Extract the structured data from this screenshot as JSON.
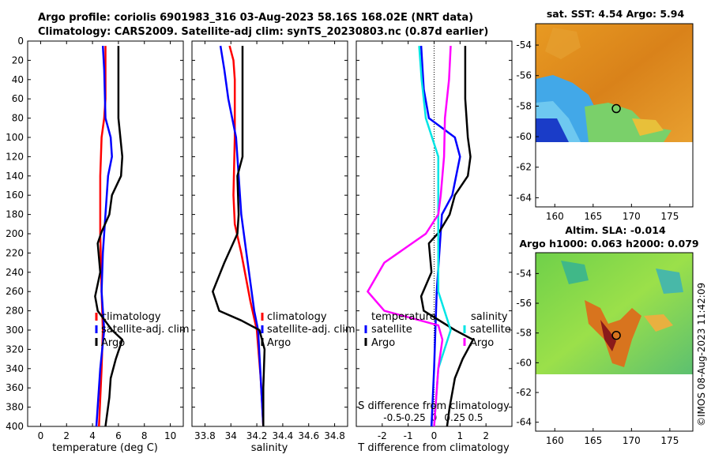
{
  "title": {
    "line1": "Argo profile: coriolis 6901983_316 03-Aug-2023 58.16S 168.02E (NRT data)",
    "line2": "Climatology: CARS2009. Satellite-adj clim: synTS_20230803.nc (0.87d earlier)"
  },
  "watermark": "©IMOS 08-Aug-2023 11:42:09",
  "colors": {
    "red": "#ff0000",
    "blue": "#0000ff",
    "black": "#000000",
    "cyan": "#00e5e5",
    "magenta": "#ff00ff"
  },
  "chart_data": [
    {
      "type": "line",
      "name": "temperature",
      "xlabel": "temperature (deg C)",
      "ylabel": "",
      "xlim": [
        -1,
        11
      ],
      "ylim": [
        400,
        0
      ],
      "xticks": [
        "0",
        "2",
        "4",
        "6",
        "8",
        "10"
      ],
      "xtick_values": [
        0,
        2,
        4,
        6,
        8,
        10
      ],
      "yticks": [
        "0",
        "20",
        "40",
        "60",
        "80",
        "100",
        "120",
        "140",
        "160",
        "180",
        "200",
        "220",
        "240",
        "260",
        "280",
        "300",
        "320",
        "340",
        "360",
        "380",
        "400"
      ],
      "legend": [
        "climatology",
        "satellite-adj. clim",
        "Argo"
      ],
      "series": [
        {
          "name": "climatology",
          "color": "red",
          "points": [
            [
              5.0,
              5
            ],
            [
              5.0,
              60
            ],
            [
              4.9,
              80
            ],
            [
              4.7,
              100
            ],
            [
              4.6,
              140
            ],
            [
              4.6,
              200
            ],
            [
              4.7,
              260
            ],
            [
              4.8,
              300
            ],
            [
              4.7,
              340
            ],
            [
              4.5,
              400
            ]
          ]
        },
        {
          "name": "satellite-adj. clim",
          "color": "blue",
          "points": [
            [
              4.8,
              5
            ],
            [
              4.9,
              30
            ],
            [
              5.0,
              80
            ],
            [
              5.4,
              100
            ],
            [
              5.5,
              120
            ],
            [
              5.2,
              140
            ],
            [
              5.0,
              180
            ],
            [
              4.8,
              220
            ],
            [
              4.7,
              260
            ],
            [
              4.9,
              300
            ],
            [
              4.6,
              340
            ],
            [
              4.3,
              400
            ]
          ]
        },
        {
          "name": "Argo",
          "color": "black",
          "points": [
            [
              6.0,
              5
            ],
            [
              6.0,
              80
            ],
            [
              6.3,
              120
            ],
            [
              6.2,
              140
            ],
            [
              5.5,
              160
            ],
            [
              5.3,
              180
            ],
            [
              4.7,
              198
            ],
            [
              4.4,
              210
            ],
            [
              4.6,
              240
            ],
            [
              4.2,
              265
            ],
            [
              4.4,
              280
            ],
            [
              5.5,
              300
            ],
            [
              6.3,
              310
            ],
            [
              5.8,
              330
            ],
            [
              5.4,
              350
            ],
            [
              5.3,
              370
            ],
            [
              5.0,
              400
            ]
          ]
        }
      ]
    },
    {
      "type": "line",
      "name": "salinity",
      "xlabel": "salinity",
      "ylabel": "",
      "xlim": [
        33.7,
        34.9
      ],
      "ylim": [
        400,
        0
      ],
      "xticks": [
        "33.8",
        "34",
        "34.2",
        "34.4",
        "34.6",
        "34.8"
      ],
      "xtick_values": [
        33.8,
        34.0,
        34.2,
        34.4,
        34.6,
        34.8
      ],
      "legend": [
        "climatology",
        "satellite-adj. clim",
        "Argo"
      ],
      "series": [
        {
          "name": "climatology",
          "color": "red",
          "points": [
            [
              33.99,
              5
            ],
            [
              34.02,
              20
            ],
            [
              34.03,
              40
            ],
            [
              34.03,
              100
            ],
            [
              34.02,
              160
            ],
            [
              34.03,
              190
            ],
            [
              34.08,
              220
            ],
            [
              34.15,
              270
            ],
            [
              34.2,
              300
            ],
            [
              34.23,
              350
            ],
            [
              34.25,
              400
            ]
          ]
        },
        {
          "name": "satellite-adj. clim",
          "color": "blue",
          "points": [
            [
              33.92,
              5
            ],
            [
              33.95,
              30
            ],
            [
              33.98,
              60
            ],
            [
              34.01,
              80
            ],
            [
              34.04,
              100
            ],
            [
              34.06,
              140
            ],
            [
              34.08,
              180
            ],
            [
              34.12,
              220
            ],
            [
              34.18,
              280
            ],
            [
              34.21,
              300
            ],
            [
              34.23,
              350
            ],
            [
              34.25,
              400
            ]
          ]
        },
        {
          "name": "Argo",
          "color": "black",
          "points": [
            [
              34.09,
              5
            ],
            [
              34.09,
              120
            ],
            [
              34.05,
              140
            ],
            [
              34.06,
              180
            ],
            [
              34.05,
              200
            ],
            [
              33.95,
              230
            ],
            [
              33.86,
              260
            ],
            [
              33.91,
              280
            ],
            [
              34.08,
              290
            ],
            [
              34.22,
              300
            ],
            [
              34.26,
              320
            ],
            [
              34.25,
              360
            ],
            [
              34.25,
              400
            ]
          ]
        }
      ]
    },
    {
      "type": "line",
      "name": "difference",
      "xlabel": "T difference from climatology",
      "xlabel_top": "S difference from climatology",
      "xlim": [
        -3,
        3
      ],
      "ylim": [
        400,
        0
      ],
      "xticks": [
        "-2",
        "-1",
        "0",
        "1",
        "2"
      ],
      "xtick_values": [
        -2,
        -1,
        0,
        1,
        2
      ],
      "sticks": [
        "-0.5",
        "-0.25",
        "0",
        "0.25",
        "0.5"
      ],
      "stick_values": [
        -0.5,
        -0.25,
        0,
        0.25,
        0.5
      ],
      "legend_left_title": "temperature",
      "legend_right_title": "salinity",
      "legend_left": [
        "satellite",
        "Argo"
      ],
      "legend_right": [
        "satellite",
        "Argo"
      ],
      "series": [
        {
          "name": "temperature satellite",
          "color": "blue",
          "points": [
            [
              -0.5,
              5
            ],
            [
              -0.4,
              50
            ],
            [
              -0.2,
              80
            ],
            [
              0.8,
              100
            ],
            [
              1.0,
              120
            ],
            [
              0.7,
              160
            ],
            [
              0.3,
              180
            ],
            [
              0.2,
              220
            ],
            [
              0.1,
              260
            ],
            [
              0.05,
              300
            ],
            [
              0.0,
              340
            ],
            [
              -0.1,
              400
            ]
          ]
        },
        {
          "name": "temperature Argo",
          "color": "black",
          "points": [
            [
              1.2,
              5
            ],
            [
              1.2,
              60
            ],
            [
              1.3,
              100
            ],
            [
              1.4,
              120
            ],
            [
              1.3,
              140
            ],
            [
              0.8,
              160
            ],
            [
              0.6,
              180
            ],
            [
              0.2,
              198
            ],
            [
              -0.2,
              210
            ],
            [
              -0.1,
              240
            ],
            [
              -0.5,
              265
            ],
            [
              -0.4,
              280
            ],
            [
              0.8,
              300
            ],
            [
              1.5,
              310
            ],
            [
              1.1,
              330
            ],
            [
              0.8,
              350
            ],
            [
              0.6,
              380
            ],
            [
              0.5,
              400
            ]
          ]
        },
        {
          "name": "salinity satellite",
          "color": "cyan",
          "points": [
            [
              -0.18,
              5
            ],
            [
              -0.15,
              40
            ],
            [
              -0.1,
              80
            ],
            [
              0.05,
              120
            ],
            [
              0.05,
              160
            ],
            [
              0.05,
              200
            ],
            [
              0.05,
              260
            ],
            [
              0.2,
              300
            ],
            [
              0.05,
              340
            ],
            [
              0.0,
              400
            ]
          ]
        },
        {
          "name": "salinity Argo",
          "color": "magenta",
          "points": [
            [
              0.2,
              5
            ],
            [
              0.18,
              40
            ],
            [
              0.13,
              80
            ],
            [
              0.12,
              120
            ],
            [
              0.08,
              160
            ],
            [
              0.05,
              180
            ],
            [
              -0.1,
              200
            ],
            [
              -0.6,
              230
            ],
            [
              -0.8,
              260
            ],
            [
              -0.6,
              280
            ],
            [
              0.05,
              295
            ],
            [
              0.1,
              310
            ],
            [
              0.05,
              340
            ],
            [
              0.0,
              400
            ]
          ]
        }
      ]
    }
  ],
  "maps": [
    {
      "title": "sat. SST: 4.54 Argo: 5.94",
      "yticks": [
        "-54",
        "-56",
        "-58",
        "-60",
        "-62",
        "-64"
      ],
      "xticks": [
        "160",
        "165",
        "170",
        "175"
      ],
      "marker_lon": 168.02,
      "marker_lat": -58.16
    },
    {
      "title1": "Altim. SLA: -0.014",
      "title2": "Argo h1000: 0.063 h2000: 0.079",
      "yticks": [
        "-54",
        "-56",
        "-58",
        "-60",
        "-62",
        "-64"
      ],
      "xticks": [
        "160",
        "165",
        "170",
        "175"
      ],
      "marker_lon": 168.02,
      "marker_lat": -58.16
    }
  ]
}
